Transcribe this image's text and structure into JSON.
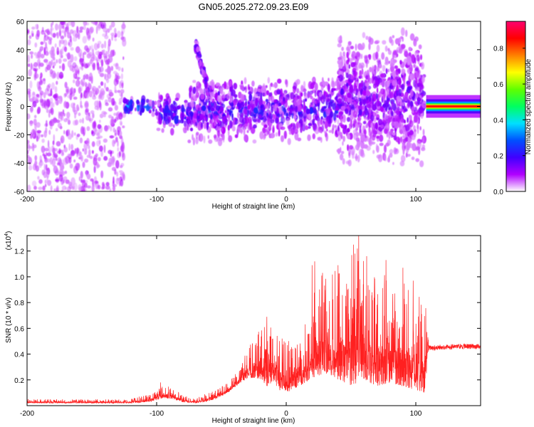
{
  "title": "GN05.2025.272.09.23.E09",
  "chart_data": [
    {
      "type": "heatmap",
      "name": "spectrogram",
      "xlabel": "Height of straight line (km)",
      "ylabel": "Frequency (Hz)",
      "xlim": [
        -200,
        150
      ],
      "ylim": [
        -60,
        60
      ],
      "xticks": [
        -200,
        -100,
        0,
        100
      ],
      "yticks": [
        -60,
        -40,
        -20,
        0,
        20,
        40,
        60
      ],
      "colorbar": {
        "label": "Normalized spectral amplitude",
        "range": [
          0,
          0.95
        ],
        "ticks": [
          "0.0",
          "0.2",
          "0.4",
          "0.6",
          "0.8"
        ],
        "tick_values": [
          0,
          0.2,
          0.4,
          0.6,
          0.8
        ],
        "colors": [
          "#ffffff",
          "#b000ff",
          "#4000ff",
          "#0050ff",
          "#00e0ff",
          "#00ff60",
          "#60ff00",
          "#ffff00",
          "#ff8000",
          "#ff0000",
          "#ff0070"
        ]
      },
      "regions": [
        {
          "x": [
            -200,
            -125
          ],
          "f": [
            -60,
            60
          ],
          "amplitude": 0.08,
          "kind": "scattered"
        },
        {
          "x": [
            -125,
            -100
          ],
          "f": [
            -5,
            5
          ],
          "amplitude": 0.3,
          "kind": "band"
        },
        {
          "x": [
            -100,
            -70
          ],
          "f": [
            -15,
            5
          ],
          "amplitude": 0.25,
          "kind": "band"
        },
        {
          "x": [
            -75,
            40
          ],
          "f": [
            -20,
            15
          ],
          "amplitude": 0.2,
          "kind": "band"
        },
        {
          "x": [
            -70,
            -60
          ],
          "f": [
            10,
            45
          ],
          "amplitude": 0.15,
          "kind": "arc"
        },
        {
          "x": [
            40,
            107
          ],
          "f": [
            -30,
            40
          ],
          "amplitude": 0.15,
          "kind": "band"
        },
        {
          "x": [
            108,
            150
          ],
          "f": [
            -1.5,
            1.5
          ],
          "amplitude": 0.9,
          "kind": "line"
        }
      ]
    },
    {
      "type": "line",
      "name": "snr",
      "xlabel": "Height of straight line (km)",
      "ylabel": "SNR (10 * v/v)",
      "yscale_label": "(x10",
      "yscale_exp": "4",
      "yscale_close": ")",
      "xlim": [
        -200,
        150
      ],
      "ylim": [
        0,
        1.32
      ],
      "xticks": [
        -200,
        -100,
        0,
        100
      ],
      "yticks": [
        0.2,
        0.4,
        0.6,
        0.8,
        1.0,
        1.2
      ],
      "ytick_labels": [
        "0.2",
        "0.4",
        "0.6",
        "0.8",
        "1.0",
        "1.2"
      ],
      "color": "#ff2020",
      "envelope": {
        "x": [
          -200,
          -120,
          -105,
          -95,
          -88,
          -80,
          -70,
          -62,
          -55,
          -45,
          -35,
          -28,
          -20,
          -15,
          -10,
          -5,
          0,
          10,
          18,
          22,
          30,
          40,
          50,
          55,
          60,
          70,
          80,
          90,
          100,
          107,
          110,
          115,
          130,
          150
        ],
        "base": [
          0.02,
          0.02,
          0.03,
          0.06,
          0.05,
          0.03,
          0.02,
          0.03,
          0.05,
          0.1,
          0.18,
          0.22,
          0.2,
          0.15,
          0.18,
          0.12,
          0.1,
          0.15,
          0.2,
          0.22,
          0.25,
          0.2,
          0.15,
          0.18,
          0.2,
          0.15,
          0.18,
          0.15,
          0.12,
          0.1,
          0.45,
          0.45,
          0.46,
          0.46
        ],
        "peak": [
          0.05,
          0.05,
          0.1,
          0.16,
          0.14,
          0.08,
          0.05,
          0.1,
          0.12,
          0.18,
          0.3,
          0.5,
          0.65,
          0.66,
          0.6,
          0.55,
          0.5,
          0.55,
          0.7,
          1.0,
          1.02,
          1.12,
          1.18,
          1.32,
          1.22,
          1.05,
          1.0,
          0.98,
          0.92,
          0.9,
          0.5,
          0.49,
          0.49,
          0.48
        ]
      },
      "spikes": [
        {
          "x": -97,
          "value": 0.18
        },
        {
          "x": -15,
          "value": 0.69
        },
        {
          "x": 20,
          "value": 1.09
        },
        {
          "x": 22,
          "value": 1.12
        },
        {
          "x": 28,
          "value": 1.03
        },
        {
          "x": 40,
          "value": 1.09
        },
        {
          "x": 52,
          "value": 1.25
        },
        {
          "x": 56,
          "value": 1.32
        },
        {
          "x": 77,
          "value": 1.13
        },
        {
          "x": 90,
          "value": 1.07
        },
        {
          "x": 98,
          "value": 0.97
        }
      ]
    }
  ]
}
